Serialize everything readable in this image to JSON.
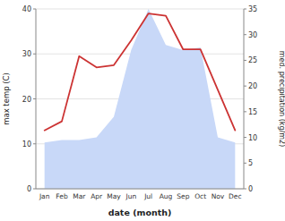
{
  "chart_data": {
    "type": "line",
    "xlabel": "date (month)",
    "ylabel": "max temp (C)",
    "y2label": "med. precipitation (kg/m2)",
    "categories": [
      "Jan",
      "Feb",
      "Mar",
      "Apr",
      "May",
      "Jun",
      "Jul",
      "Aug",
      "Sep",
      "Oct",
      "Nov",
      "Dec"
    ],
    "series": [
      {
        "type": "area",
        "axis": "y2",
        "color": "#c8d8f8",
        "values": [
          9.0,
          9.5,
          9.5,
          10.0,
          14.0,
          27.0,
          35.0,
          28.0,
          27.0,
          27.5,
          10.0,
          9.0
        ]
      },
      {
        "type": "line",
        "color": "#cc3333",
        "values": [
          13.0,
          15.0,
          29.5,
          27.0,
          27.5,
          33.0,
          39.0,
          38.5,
          31.0,
          31.0,
          22.0,
          13.0
        ]
      }
    ],
    "ylim": [
      0,
      40
    ],
    "yticks": [
      0,
      10,
      20,
      30,
      40
    ],
    "y2lim": [
      0,
      35
    ],
    "y2ticks": [
      0,
      5,
      10,
      15,
      20,
      25,
      30,
      35
    ],
    "grid": true
  }
}
